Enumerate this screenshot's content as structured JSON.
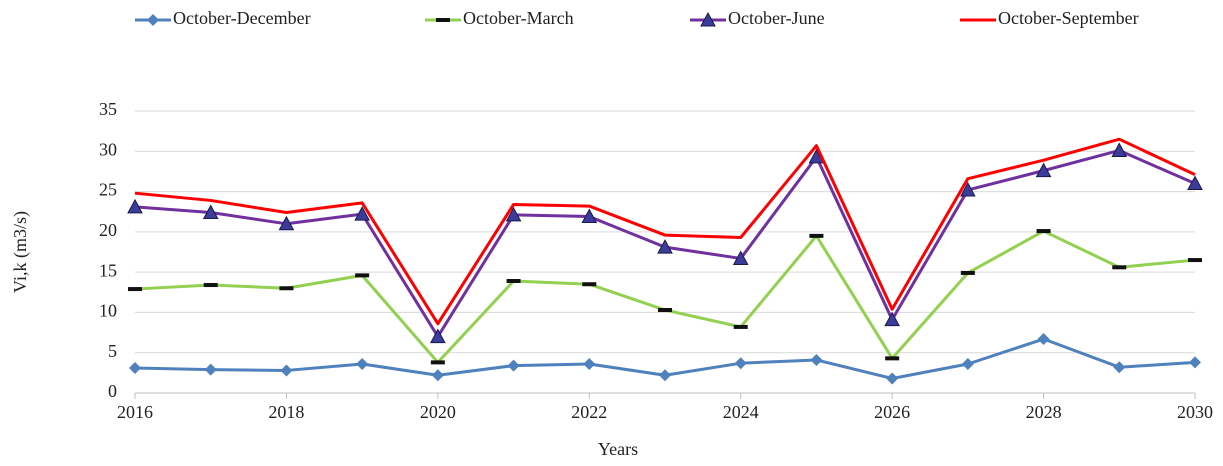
{
  "chart_data": {
    "type": "line",
    "x_label": "Years",
    "y_label": "Vi,k   (m3/s)",
    "x": [
      2016,
      2017,
      2018,
      2019,
      2020,
      2021,
      2022,
      2023,
      2024,
      2025,
      2026,
      2027,
      2028,
      2029,
      2030
    ],
    "xlim": [
      2016,
      2030
    ],
    "xticks": [
      2016,
      2018,
      2020,
      2022,
      2024,
      2026,
      2028,
      2030
    ],
    "ylim": [
      0,
      35
    ],
    "yticks": [
      0,
      5,
      10,
      15,
      20,
      25,
      30,
      35
    ],
    "grid": true,
    "legend": "top",
    "series": [
      {
        "name": "October-December",
        "color": "#4f81bd",
        "marker": "diamond",
        "values": [
          3.1,
          2.9,
          2.8,
          3.6,
          2.2,
          3.4,
          3.6,
          2.2,
          3.7,
          4.1,
          1.8,
          3.6,
          6.7,
          3.2,
          3.8
        ]
      },
      {
        "name": "October-March",
        "color": "#92d050",
        "marker": "dash",
        "values": [
          12.9,
          13.4,
          13.0,
          14.6,
          3.8,
          13.9,
          13.5,
          10.3,
          8.2,
          19.5,
          4.3,
          14.9,
          20.1,
          15.6,
          16.5
        ]
      },
      {
        "name": "October-June",
        "color": "#7030a0",
        "marker": "triangle",
        "values": [
          23.1,
          22.4,
          21.0,
          22.2,
          7.0,
          22.1,
          21.9,
          18.1,
          16.7,
          29.3,
          9.1,
          25.2,
          27.6,
          30.1,
          26.0
        ]
      },
      {
        "name": "October-September",
        "color": "#ff0000",
        "marker": "none",
        "values": [
          24.8,
          23.9,
          22.4,
          23.6,
          8.6,
          23.4,
          23.2,
          19.6,
          19.3,
          30.7,
          10.4,
          26.6,
          28.9,
          31.5,
          27.1
        ]
      }
    ]
  }
}
